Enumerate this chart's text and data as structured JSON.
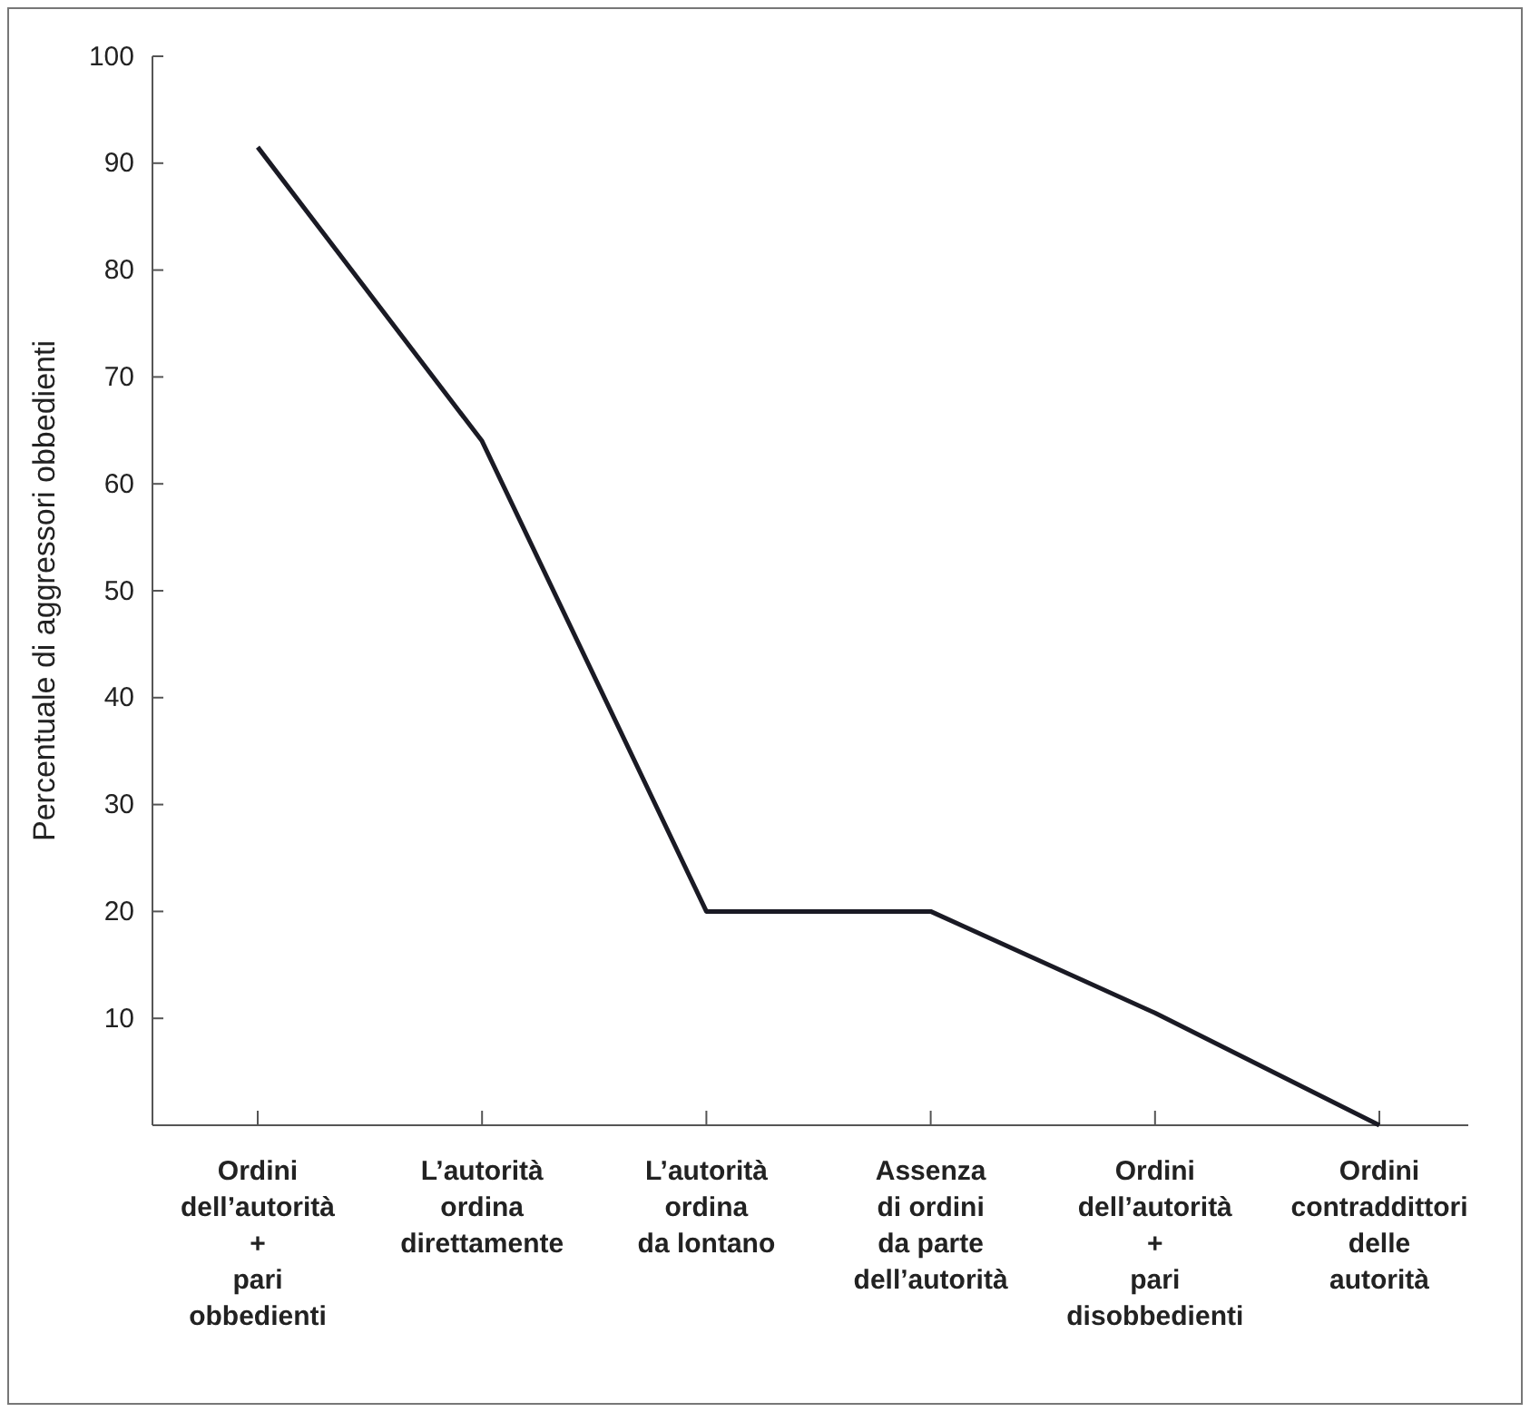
{
  "chart_data": {
    "type": "line",
    "ylabel": "Percentuale di aggressori obbedienti",
    "categories": [
      "Ordini\ndell’autorità\n+\npari\nobbedienti",
      "L’autorità\nordina\ndirettamente",
      "L’autorità\nordina\nda lontano",
      "Assenza\ndi ordini\nda parte\ndell’autorità",
      "Ordini\ndell’autorità\n+\npari\ndisobbedienti",
      "Ordini\ncontraddittori\ndelle\nautorità"
    ],
    "series": [
      {
        "color": "#1a1a24",
        "values": [
          91.5,
          64,
          20,
          20,
          10.5,
          0
        ]
      }
    ],
    "ylim": [
      0,
      100
    ],
    "yticks": [
      10,
      20,
      30,
      40,
      50,
      60,
      70,
      80,
      90,
      100
    ],
    "grid": false,
    "marker": "none",
    "line_style": "solid"
  }
}
